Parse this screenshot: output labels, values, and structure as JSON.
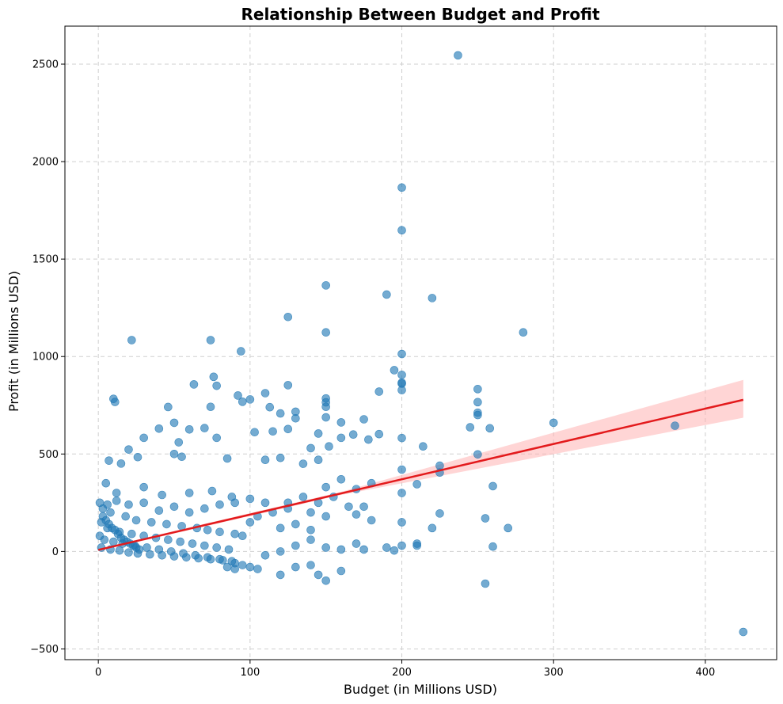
{
  "chart_data": {
    "type": "scatter",
    "title": "Relationship Between Budget and Profit",
    "xlabel": "Budget (in Millions USD)",
    "ylabel": "Profit (in Millions USD)",
    "xlim": [
      -22,
      447
    ],
    "ylim": [
      -555,
      2695
    ],
    "xticks": [
      0,
      100,
      200,
      300,
      400
    ],
    "yticks": [
      -500,
      0,
      500,
      1000,
      1500,
      2000,
      2500
    ],
    "grid": true,
    "colors": {
      "points": "#1f77b4",
      "regression_line": "#e31a1c",
      "confidence_band": "#ffb3b3"
    },
    "regression": {
      "x": [
        0,
        425
      ],
      "y": [
        8,
        778
      ],
      "ci_upper_end": 880,
      "ci_lower_end": 686
    },
    "points": [
      [
        237,
        2545
      ],
      [
        200,
        1867
      ],
      [
        200,
        1648
      ],
      [
        150,
        1365
      ],
      [
        190,
        1318
      ],
      [
        220,
        1300
      ],
      [
        125,
        1203
      ],
      [
        150,
        1124
      ],
      [
        280,
        1124
      ],
      [
        22,
        1084
      ],
      [
        74,
        1084
      ],
      [
        94,
        1027
      ],
      [
        200,
        1013
      ],
      [
        195,
        930
      ],
      [
        200,
        906
      ],
      [
        76,
        896
      ],
      [
        200,
        866
      ],
      [
        200,
        861
      ],
      [
        125,
        853
      ],
      [
        78,
        850
      ],
      [
        63,
        857
      ],
      [
        250,
        833
      ],
      [
        200,
        828
      ],
      [
        185,
        820
      ],
      [
        110,
        812
      ],
      [
        92,
        800
      ],
      [
        150,
        785
      ],
      [
        100,
        780
      ],
      [
        10,
        783
      ],
      [
        11,
        767
      ],
      [
        95,
        768
      ],
      [
        150,
        765
      ],
      [
        250,
        766
      ],
      [
        113,
        740
      ],
      [
        46,
        741
      ],
      [
        74,
        742
      ],
      [
        150,
        742
      ],
      [
        120,
        708
      ],
      [
        130,
        717
      ],
      [
        250,
        712
      ],
      [
        250,
        700
      ],
      [
        50,
        660
      ],
      [
        150,
        688
      ],
      [
        130,
        683
      ],
      [
        160,
        662
      ],
      [
        175,
        678
      ],
      [
        300,
        660
      ],
      [
        245,
        637
      ],
      [
        258,
        632
      ],
      [
        40,
        630
      ],
      [
        60,
        626
      ],
      [
        70,
        633
      ],
      [
        115,
        616
      ],
      [
        103,
        612
      ],
      [
        125,
        628
      ],
      [
        145,
        605
      ],
      [
        168,
        600
      ],
      [
        185,
        602
      ],
      [
        200,
        582
      ],
      [
        380,
        645
      ],
      [
        30,
        583
      ],
      [
        53,
        560
      ],
      [
        78,
        583
      ],
      [
        160,
        583
      ],
      [
        178,
        574
      ],
      [
        214,
        539
      ],
      [
        152,
        539
      ],
      [
        140,
        530
      ],
      [
        20,
        523
      ],
      [
        50,
        500
      ],
      [
        250,
        498
      ],
      [
        225,
        440
      ],
      [
        225,
        405
      ],
      [
        260,
        335
      ],
      [
        210,
        345
      ],
      [
        150,
        330
      ],
      [
        200,
        300
      ],
      [
        200,
        420
      ],
      [
        170,
        320
      ],
      [
        180,
        350
      ],
      [
        160,
        370
      ],
      [
        135,
        450
      ],
      [
        120,
        480
      ],
      [
        145,
        470
      ],
      [
        7,
        466
      ],
      [
        15,
        451
      ],
      [
        26,
        484
      ],
      [
        55,
        486
      ],
      [
        85,
        477
      ],
      [
        110,
        470
      ],
      [
        5,
        350
      ],
      [
        12,
        300
      ],
      [
        30,
        330
      ],
      [
        42,
        290
      ],
      [
        60,
        300
      ],
      [
        75,
        310
      ],
      [
        88,
        280
      ],
      [
        100,
        270
      ],
      [
        110,
        250
      ],
      [
        125,
        220
      ],
      [
        140,
        200
      ],
      [
        150,
        180
      ],
      [
        170,
        190
      ],
      [
        180,
        160
      ],
      [
        200,
        150
      ],
      [
        220,
        120
      ],
      [
        225,
        195
      ],
      [
        255,
        170
      ],
      [
        270,
        120
      ],
      [
        3,
        220
      ],
      [
        8,
        200
      ],
      [
        18,
        180
      ],
      [
        25,
        160
      ],
      [
        35,
        150
      ],
      [
        45,
        140
      ],
      [
        55,
        130
      ],
      [
        65,
        120
      ],
      [
        72,
        110
      ],
      [
        80,
        100
      ],
      [
        90,
        90
      ],
      [
        95,
        80
      ],
      [
        2,
        150
      ],
      [
        6,
        120
      ],
      [
        14,
        100
      ],
      [
        22,
        90
      ],
      [
        30,
        80
      ],
      [
        38,
        70
      ],
      [
        46,
        60
      ],
      [
        54,
        50
      ],
      [
        62,
        40
      ],
      [
        70,
        30
      ],
      [
        78,
        20
      ],
      [
        86,
        10
      ],
      [
        1,
        80
      ],
      [
        4,
        60
      ],
      [
        10,
        50
      ],
      [
        16,
        40
      ],
      [
        24,
        30
      ],
      [
        32,
        20
      ],
      [
        40,
        10
      ],
      [
        48,
        0
      ],
      [
        56,
        -10
      ],
      [
        64,
        -20
      ],
      [
        72,
        -30
      ],
      [
        80,
        -40
      ],
      [
        88,
        -50
      ],
      [
        2,
        20
      ],
      [
        8,
        10
      ],
      [
        14,
        5
      ],
      [
        20,
        -5
      ],
      [
        26,
        -10
      ],
      [
        34,
        -15
      ],
      [
        42,
        -20
      ],
      [
        50,
        -25
      ],
      [
        58,
        -30
      ],
      [
        66,
        -35
      ],
      [
        74,
        -40
      ],
      [
        82,
        -45
      ],
      [
        90,
        -60
      ],
      [
        95,
        -70
      ],
      [
        100,
        -80
      ],
      [
        105,
        -90
      ],
      [
        85,
        -80
      ],
      [
        90,
        -90
      ],
      [
        120,
        -120
      ],
      [
        130,
        -80
      ],
      [
        140,
        -70
      ],
      [
        145,
        -120
      ],
      [
        150,
        -150
      ],
      [
        160,
        -100
      ],
      [
        110,
        -20
      ],
      [
        120,
        0
      ],
      [
        130,
        30
      ],
      [
        140,
        60
      ],
      [
        150,
        20
      ],
      [
        160,
        10
      ],
      [
        170,
        40
      ],
      [
        175,
        10
      ],
      [
        190,
        20
      ],
      [
        195,
        5
      ],
      [
        200,
        30
      ],
      [
        210,
        40
      ],
      [
        210,
        30
      ],
      [
        260,
        25
      ],
      [
        255,
        -165
      ],
      [
        425,
        -413
      ],
      [
        120,
        120
      ],
      [
        130,
        140
      ],
      [
        140,
        110
      ],
      [
        100,
        150
      ],
      [
        105,
        180
      ],
      [
        115,
        200
      ],
      [
        125,
        250
      ],
      [
        135,
        280
      ],
      [
        145,
        250
      ],
      [
        155,
        280
      ],
      [
        165,
        230
      ],
      [
        175,
        230
      ],
      [
        60,
        200
      ],
      [
        70,
        220
      ],
      [
        80,
        240
      ],
      [
        90,
        250
      ],
      [
        50,
        230
      ],
      [
        40,
        210
      ],
      [
        30,
        250
      ],
      [
        20,
        240
      ],
      [
        12,
        260
      ],
      [
        6,
        240
      ],
      [
        1,
        250
      ],
      [
        3,
        180
      ],
      [
        5,
        160
      ],
      [
        7,
        140
      ],
      [
        9,
        120
      ],
      [
        11,
        110
      ],
      [
        13,
        90
      ],
      [
        15,
        70
      ],
      [
        17,
        60
      ],
      [
        19,
        50
      ],
      [
        21,
        40
      ],
      [
        23,
        30
      ],
      [
        25,
        20
      ],
      [
        27,
        10
      ]
    ]
  }
}
